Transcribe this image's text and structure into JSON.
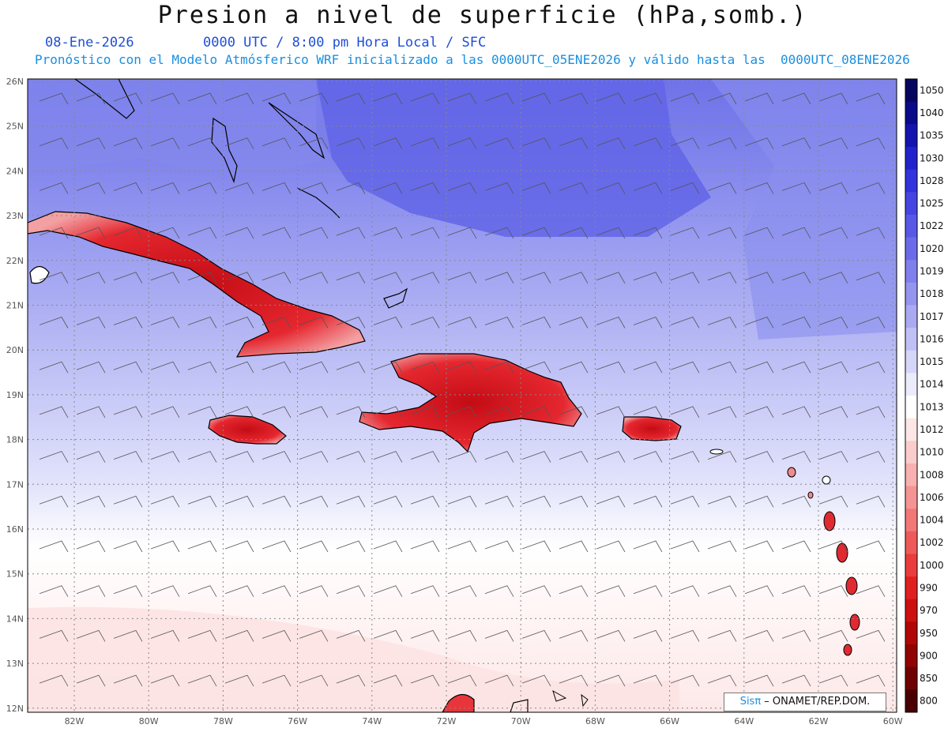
{
  "title": "Presion a nivel de superficie (hPa,somb.)",
  "date": "08-Ene-2026",
  "time_info": "0000 UTC / 8:00 pm Hora Local / SFC",
  "model_info": "Pronóstico con el Modelo Atmósferico WRF inicializado a las 0000UTC_05ENE2026 y válido hasta las  0000UTC_08ENE2026",
  "credit": {
    "brand": "Sisπ",
    "text": " – ONAMET/REP.DOM."
  },
  "lat_labels": [
    "26N",
    "25N",
    "24N",
    "23N",
    "22N",
    "21N",
    "20N",
    "19N",
    "18N",
    "17N",
    "16N",
    "15N",
    "14N",
    "13N",
    "12N"
  ],
  "lon_labels": [
    "82W",
    "80W",
    "78W",
    "76W",
    "74W",
    "72W",
    "70W",
    "68W",
    "66W",
    "64W",
    "62W",
    "60W"
  ],
  "colorbar": {
    "labels": [
      "1050",
      "1040",
      "1035",
      "1030",
      "1028",
      "1025",
      "1022",
      "1020",
      "1019",
      "1018",
      "1017",
      "1016",
      "1015",
      "1014",
      "1013",
      "1012",
      "1010",
      "1008",
      "1006",
      "1004",
      "1002",
      "1000",
      "990",
      "970",
      "950",
      "900",
      "850",
      "800"
    ],
    "colors": [
      "#06065e",
      "#0a0a8a",
      "#1313b0",
      "#2222cc",
      "#3333dd",
      "#4545e2",
      "#5858e6",
      "#6b6be9",
      "#8080ec",
      "#9595ef",
      "#aaaaf2",
      "#c0c0f6",
      "#d6d6f9",
      "#ebebfc",
      "#ffffff",
      "#fde6e6",
      "#fbcccc",
      "#f8b0b0",
      "#f59494",
      "#f27878",
      "#ee5a5a",
      "#ea3c3c",
      "#e02020",
      "#cc1010",
      "#b00808",
      "#900404",
      "#6e0202",
      "#4a0000"
    ]
  },
  "land_colors": {
    "land_low": "#e8333a",
    "land_high": "#c80f18",
    "ocean_deep": "#6f73e8"
  }
}
